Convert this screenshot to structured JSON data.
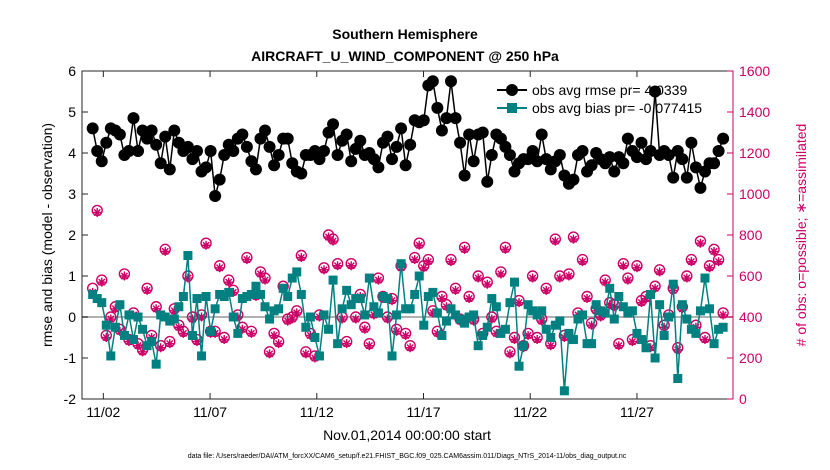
{
  "chart_data": {
    "type": "line",
    "title": "Southern Hemisphere",
    "subtitle": "AIRCRAFT_U_WIND_COMPONENT @ 250 hPa",
    "xlabel": "Nov.01,2014 00:00:00 start",
    "ylabel": "rmse and bias (model - observation)",
    "ylabel_right": "# of obs: o=possible; ∗=assimilated",
    "ylim": [
      -2,
      6
    ],
    "ylim_right": [
      0,
      1600
    ],
    "xlim": [
      1.0,
      31.5
    ],
    "yticks": [
      "-2",
      "-1",
      "0",
      "1",
      "2",
      "3",
      "4",
      "5",
      "6"
    ],
    "yticks_right": [
      "0",
      "200",
      "400",
      "600",
      "800",
      "1000",
      "1200",
      "1400",
      "1600"
    ],
    "xticks": [
      "11/02",
      "11/07",
      "11/12",
      "11/17",
      "11/22",
      "11/27"
    ],
    "legend_location": "top-right",
    "footnote": "data file: /Users/raeder/DAI/ATM_forcXX/CAM6_setup/f.e21.FHIST_BGC.f09_025.CAM6assim.011/Diags_NTrS_2014-11/obs_diag_output.nc",
    "colors": {
      "rmse": "#000000",
      "bias": "#008080",
      "obs": "#cc0066",
      "zero_line": "#b0b0b0"
    },
    "series": [
      {
        "name": "obs avg rmse pr= 4.0339",
        "axis": "left",
        "values": [
          4.6,
          4.05,
          3.8,
          4.25,
          4.6,
          4.55,
          4.45,
          3.95,
          4.05,
          4.85,
          4.05,
          4.55,
          4.35,
          4.55,
          4.2,
          3.75,
          4.4,
          3.6,
          4.55,
          4.25,
          4.05,
          4.15,
          3.85,
          4.05,
          3.55,
          3.65,
          4.05,
          2.95,
          3.35,
          3.95,
          4.2,
          4.05,
          4.35,
          4.45,
          4.15,
          3.8,
          3.6,
          4.35,
          4.55,
          4.15,
          3.7,
          3.95,
          4.35,
          4.35,
          3.75,
          3.55,
          3.5,
          3.95,
          3.95,
          4.05,
          3.85,
          4.05,
          4.5,
          4.7,
          3.95,
          4.3,
          4.45,
          3.8,
          4.1,
          4.3,
          3.95,
          4.0,
          3.85,
          3.65,
          4.25,
          4.4,
          3.85,
          4.15,
          4.6,
          3.7,
          4.2,
          4.8,
          4.75,
          4.8,
          5.65,
          5.75,
          5.1,
          4.55,
          4.85,
          5.75,
          4.85,
          4.25,
          3.45,
          4.45,
          3.8,
          4.45,
          4.5,
          3.3,
          3.95,
          4.45,
          4.35,
          4.15,
          3.95,
          3.55,
          3.75,
          3.85,
          3.85,
          4.05,
          3.8,
          4.45,
          3.85,
          3.6,
          3.8,
          3.95,
          3.45,
          3.25,
          3.35,
          3.95,
          4.05,
          3.55,
          3.7,
          4.0,
          3.85,
          3.75,
          3.9,
          3.55,
          3.9,
          3.75,
          4.35,
          4.05,
          3.9,
          4.25,
          3.85,
          4.05,
          5.5,
          3.95,
          4.05,
          3.95,
          3.4,
          4.05,
          3.85,
          3.4,
          4.25,
          3.65,
          3.15,
          3.55,
          3.75,
          3.75,
          4.05,
          4.35
        ]
      },
      {
        "name": "obs avg bias pr= -0.077415",
        "axis": "left",
        "values": [
          0.55,
          0.45,
          0.35,
          -0.2,
          -0.95,
          -0.25,
          0.3,
          -0.45,
          0.05,
          -0.55,
          0.0,
          -0.3,
          -0.7,
          -0.6,
          -1.15,
          0.05,
          0.0,
          -0.1,
          -0.05,
          0.25,
          0.5,
          1.5,
          -0.45,
          0.45,
          -0.95,
          0.5,
          -0.35,
          0.2,
          0.55,
          0.5,
          0.6,
          0.0,
          -0.4,
          0.45,
          0.5,
          0.55,
          0.75,
          0.55,
          0.25,
          -0.05,
          0.15,
          0.2,
          0.7,
          0.5,
          0.95,
          1.1,
          0.55,
          -0.25,
          0.0,
          -0.5,
          -0.95,
          0.05,
          -0.3,
          0.9,
          -0.65,
          0.2,
          0.65,
          0.3,
          0.45,
          0.45,
          0.05,
          0.95,
          0.25,
          0.1,
          0.5,
          0.45,
          -0.95,
          0.05,
          1.3,
          0.2,
          0.2,
          0.55,
          1.0,
          -0.2,
          0.5,
          0.6,
          0.1,
          -0.45,
          -0.1,
          0.2,
          0.05,
          -0.05,
          -0.15,
          0.0,
          0.05,
          -0.7,
          -0.45,
          -0.25,
          0.45,
          0.25,
          -0.4,
          -0.3,
          0.35,
          0.85,
          -1.2,
          -0.7,
          0.3,
          0.15,
          0.05,
          0.15,
          -0.3,
          -0.5,
          -0.2,
          -0.1,
          -1.8,
          -0.4,
          -0.55,
          -0.05,
          0.05,
          -0.65,
          -0.65,
          0.3,
          0.15,
          0.1,
          0.7,
          -0.05,
          0.5,
          0.25,
          0.1,
          0.15,
          -0.4,
          -0.55,
          -0.75,
          0.55,
          -1.0,
          0.3,
          -0.45,
          0.0,
          0.8,
          -1.5,
          0.3,
          -0.05,
          -0.3,
          -0.4,
          0.15,
          0.95,
          0.2,
          -0.65,
          -0.3,
          -0.25
        ]
      },
      {
        "name": "# of obs possible",
        "axis": "right",
        "marker": "o",
        "values": [
          540,
          920,
          580,
          310,
          400,
          450,
          340,
          610,
          290,
          420,
          270,
          240,
          540,
          310,
          450,
          260,
          730,
          280,
          440,
          360,
          330,
          600,
          400,
          290,
          410,
          760,
          330,
          330,
          650,
          300,
          580,
          530,
          410,
          350,
          690,
          330,
          510,
          620,
          590,
          230,
          320,
          280,
          550,
          390,
          400,
          430,
          700,
          230,
          320,
          210,
          410,
          640,
          800,
          780,
          660,
          400,
          280,
          660,
          400,
          510,
          350,
          270,
          420,
          590,
          500,
          400,
          490,
          340,
          650,
          320,
          260,
          690,
          760,
          650,
          680,
          430,
          330,
          500,
          460,
          680,
          540,
          390,
          740,
          500,
          390,
          600,
          320,
          570,
          400,
          330,
          620,
          740,
          230,
          300,
          480,
          260,
          320,
          600,
          300,
          390,
          540,
          270,
          780,
          600,
          310,
          610,
          790,
          420,
          680,
          500,
          370,
          440,
          410,
          580,
          470,
          460,
          270,
          660,
          590,
          290,
          650,
          480,
          500,
          260,
          550,
          630,
          360,
          410,
          540,
          250,
          450,
          600,
          680,
          360,
          770,
          300,
          650,
          730,
          680,
          420
        ]
      },
      {
        "name": "# of obs assimilated",
        "axis": "right",
        "marker": "*",
        "values": [
          520,
          910,
          570,
          300,
          390,
          440,
          330,
          600,
          280,
          410,
          260,
          230,
          530,
          300,
          440,
          250,
          720,
          270,
          430,
          350,
          320,
          590,
          390,
          280,
          400,
          750,
          320,
          320,
          640,
          290,
          570,
          520,
          400,
          340,
          680,
          320,
          500,
          610,
          580,
          220,
          310,
          270,
          540,
          380,
          390,
          420,
          690,
          220,
          310,
          200,
          400,
          630,
          790,
          770,
          650,
          390,
          270,
          650,
          390,
          500,
          340,
          260,
          410,
          580,
          490,
          390,
          480,
          330,
          640,
          310,
          250,
          680,
          750,
          640,
          670,
          420,
          320,
          490,
          450,
          670,
          530,
          380,
          730,
          490,
          380,
          590,
          310,
          560,
          390,
          320,
          610,
          730,
          220,
          290,
          470,
          250,
          310,
          590,
          290,
          380,
          530,
          260,
          770,
          590,
          300,
          600,
          780,
          410,
          670,
          490,
          360,
          430,
          400,
          570,
          460,
          450,
          260,
          650,
          580,
          280,
          640,
          470,
          490,
          250,
          540,
          620,
          350,
          400,
          530,
          240,
          440,
          590,
          670,
          350,
          760,
          290,
          640,
          720,
          670,
          410
        ]
      }
    ]
  }
}
